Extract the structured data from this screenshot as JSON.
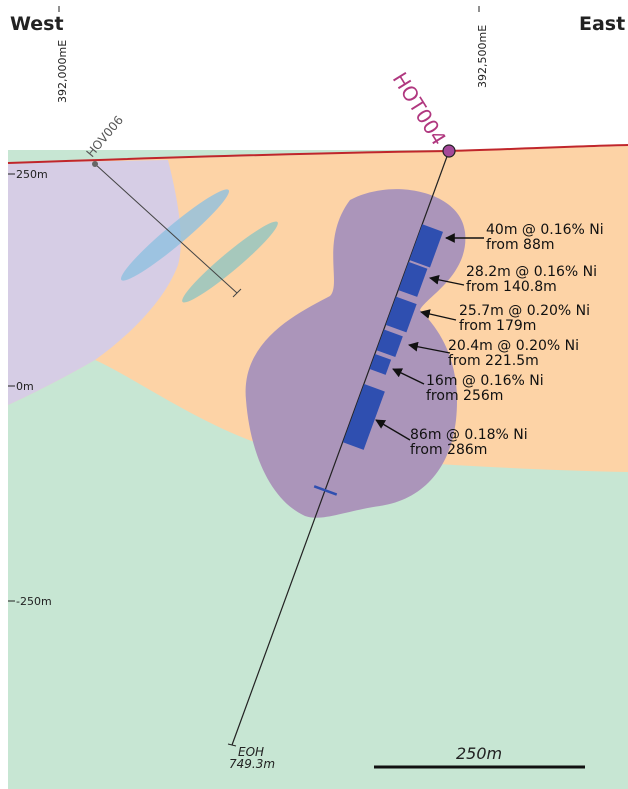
{
  "header": {
    "west": "West",
    "east": "East"
  },
  "eastings": [
    "392,000mE",
    "392,500mE"
  ],
  "elevations": [
    "250m",
    "0m",
    "-250m"
  ],
  "holes": [
    {
      "name": "HOT004"
    },
    {
      "name": "HOV006"
    }
  ],
  "intercepts": [
    {
      "grade": "40m @ 0.16% Ni",
      "from": "from 88m"
    },
    {
      "grade": "28.2m @ 0.16% Ni",
      "from": "from 140.8m"
    },
    {
      "grade": "25.7m @ 0.20% Ni",
      "from": "from 179m"
    },
    {
      "grade": "20.4m @ 0.20% Ni",
      "from": "from 221.5m"
    },
    {
      "grade": "16m @ 0.16% Ni",
      "from": "from 256m"
    },
    {
      "grade": "86m @ 0.18% Ni",
      "from": "from 286m"
    }
  ],
  "eoh": {
    "label": "EOH",
    "depth": "749.3m"
  },
  "scale": "250m"
}
